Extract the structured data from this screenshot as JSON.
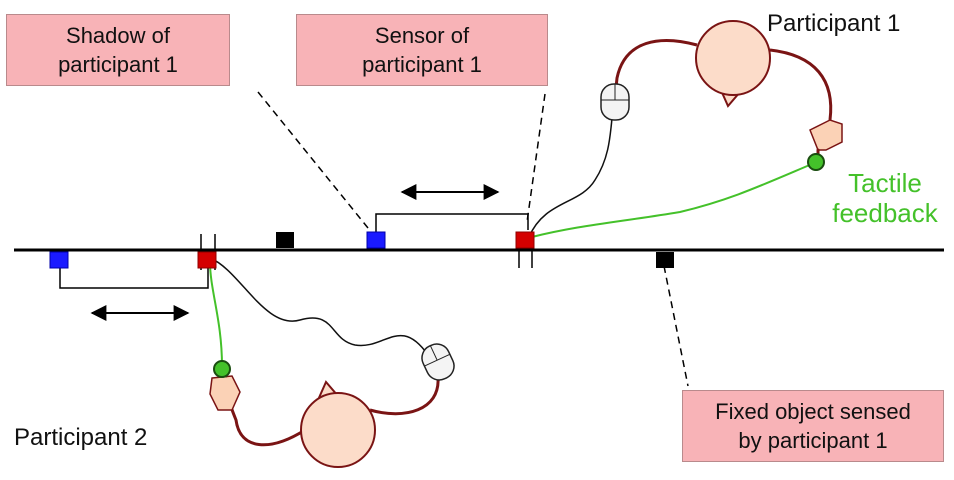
{
  "labels": {
    "shadow_line1": "Shadow of",
    "shadow_line2": "participant 1",
    "sensor_line1": "Sensor of",
    "sensor_line2": "participant 1",
    "participant1": "Participant 1",
    "participant2": "Participant 2",
    "tactile_line1": "Tactile",
    "tactile_line2": "feedback",
    "fixed_line1": "Fixed object sensed",
    "fixed_line2": "by participant 1"
  },
  "colors": {
    "callout_fill": "#f8b3b7",
    "sensor": "#d40000",
    "shadow": "#1a1aff",
    "fixed_object": "#000000",
    "tactile": "#44c12a",
    "head": "#fcdcc9",
    "cable": "#7a1414"
  }
}
